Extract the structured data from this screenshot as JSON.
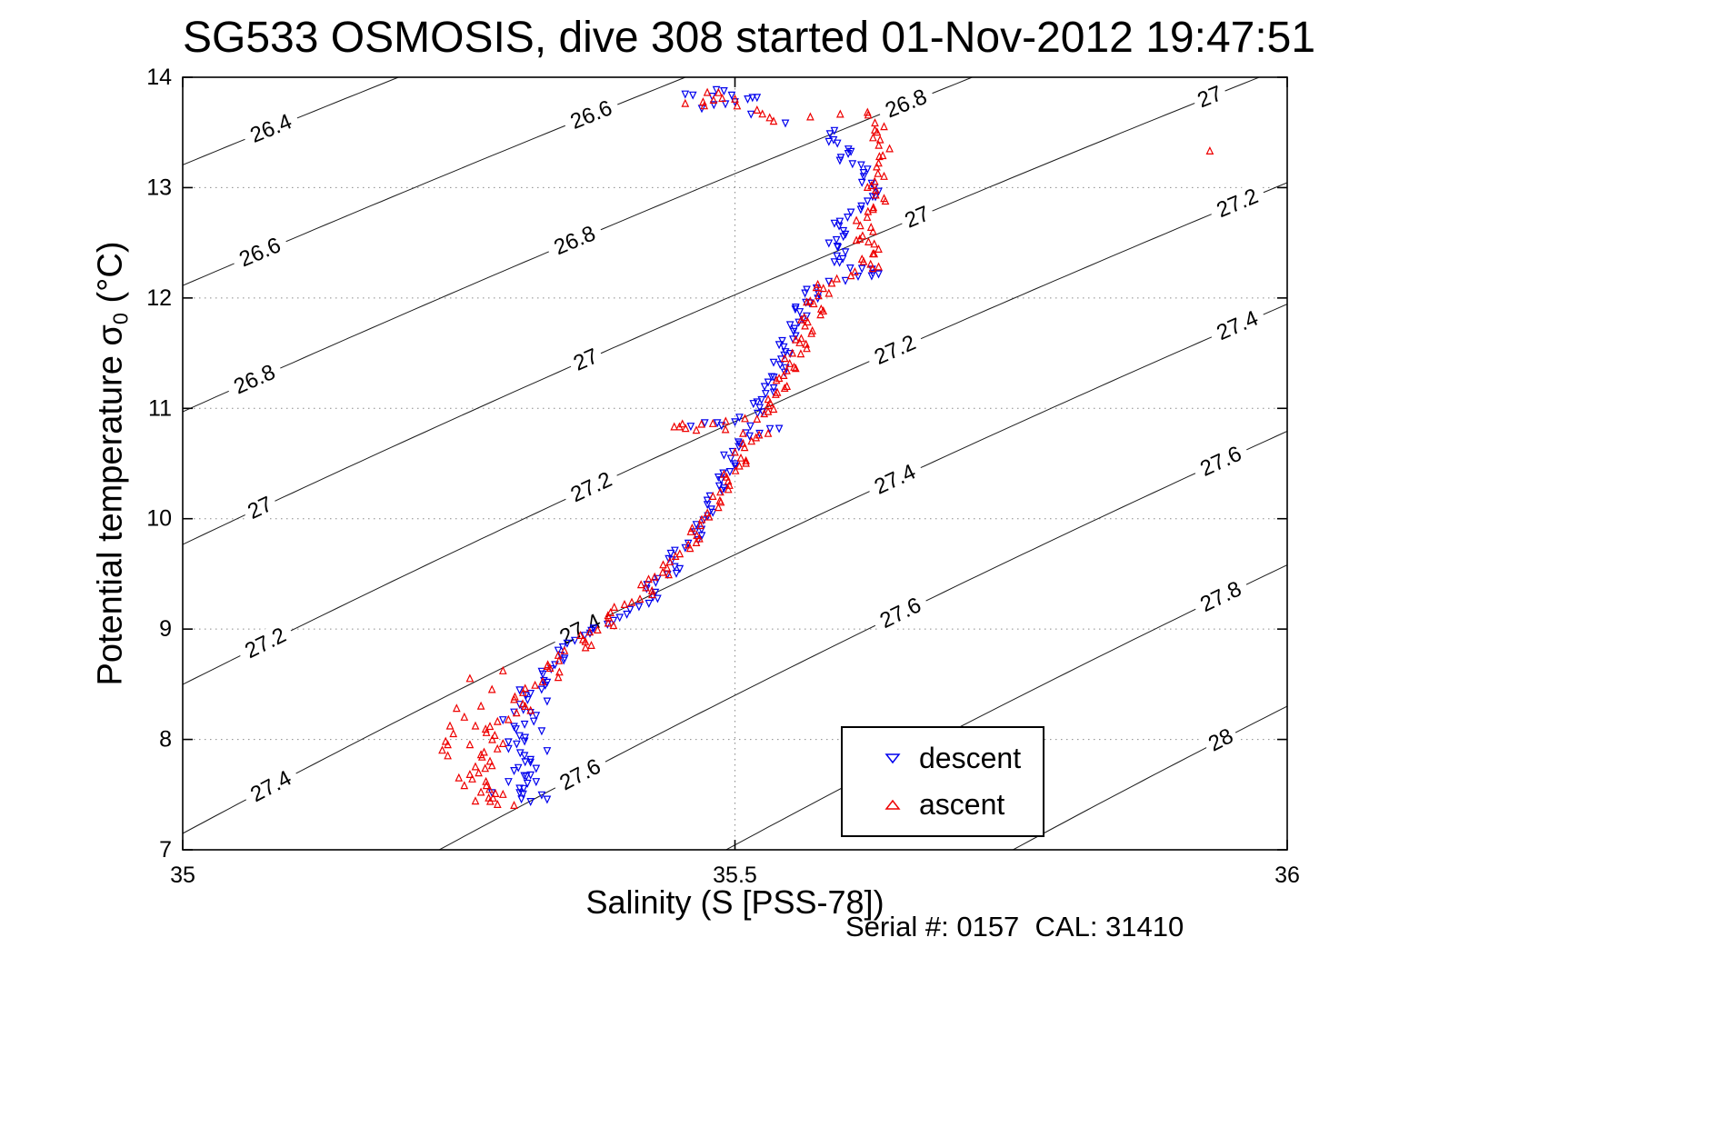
{
  "chart_data": {
    "type": "scatter",
    "title": "SG533 OSMOSIS, dive 308 started 01-Nov-2012 19:47:51",
    "xlabel": "Salinity (S [PSS-78])",
    "ylabel": "Potential temperature σ_0 (°C)",
    "ylabel_parts": {
      "pre": "Potential temperature σ",
      "sub": "0",
      "post": " (°C)"
    },
    "footnote": "Serial #: 0157  CAL: 31410",
    "xlim": [
      35,
      36
    ],
    "ylim": [
      7,
      14
    ],
    "xticks": {
      "values": [
        35,
        35.5,
        36
      ],
      "labels": [
        "35",
        "35.5",
        "36"
      ]
    },
    "yticks": {
      "values": [
        7,
        8,
        9,
        10,
        11,
        12,
        13,
        14
      ],
      "labels": [
        "7",
        "8",
        "9",
        "10",
        "11",
        "12",
        "13",
        "14"
      ]
    },
    "grid": true,
    "legend": {
      "position": "inside-lower-right",
      "entries": [
        {
          "label": "descent",
          "marker": "triangle-down",
          "color": "#0000ee"
        },
        {
          "label": "ascent",
          "marker": "triangle-up",
          "color": "#ee0000"
        }
      ]
    },
    "isopycnals": {
      "description": "potential density sigma-0 contour lines (kg/m^3)",
      "levels": [
        26.4,
        26.6,
        26.8,
        27,
        27.2,
        27.4,
        27.6,
        27.8,
        28
      ],
      "eos": {
        "sigma0": 28.242,
        "dS": 0.77,
        "a1": 0.0922,
        "a2": 0.00358
      },
      "labels": [
        {
          "level": 26.4,
          "text": "26.4",
          "s": [
            35.08
          ]
        },
        {
          "level": 26.6,
          "text": "26.6",
          "s": [
            35.07,
            35.37
          ]
        },
        {
          "level": 26.8,
          "text": "26.8",
          "s": [
            35.065,
            35.355,
            35.655
          ]
        },
        {
          "level": 27,
          "text": "27",
          "s": [
            35.07,
            35.365,
            35.665,
            35.93
          ]
        },
        {
          "level": 27.2,
          "text": "27.2",
          "s": [
            35.075,
            35.37,
            35.645,
            35.955
          ]
        },
        {
          "level": 27.4,
          "text": "27.4",
          "s": [
            35.08,
            35.36,
            35.645,
            35.955
          ]
        },
        {
          "level": 27.6,
          "text": "27.6",
          "s": [
            35.36,
            35.65,
            35.94
          ]
        },
        {
          "level": 27.8,
          "text": "27.8",
          "s": [
            35.94
          ]
        },
        {
          "level": 28,
          "text": "28",
          "s": [
            35.94
          ]
        }
      ]
    },
    "series": [
      {
        "name": "descent",
        "marker": "triangle-down",
        "color": "#0000ee",
        "points": [
          [
            35.49,
            13.88
          ],
          [
            35.455,
            13.85
          ],
          [
            35.52,
            13.82
          ],
          [
            35.5,
            13.78
          ],
          [
            35.47,
            13.72
          ],
          [
            35.59,
            13.52
          ],
          [
            35.585,
            13.42
          ],
          [
            35.605,
            13.33
          ],
          [
            35.595,
            13.25
          ],
          [
            35.62,
            13.17
          ],
          [
            35.615,
            13.05
          ],
          [
            35.63,
            12.97
          ],
          [
            35.62,
            12.88
          ],
          [
            35.605,
            12.78
          ],
          [
            35.59,
            12.68
          ],
          [
            35.6,
            12.58
          ],
          [
            35.585,
            12.5
          ],
          [
            35.6,
            12.42
          ],
          [
            35.59,
            12.33
          ],
          [
            35.615,
            12.27
          ],
          [
            35.63,
            12.22
          ],
          [
            35.6,
            12.16
          ],
          [
            35.565,
            12.08
          ],
          [
            35.575,
            12.0
          ],
          [
            35.555,
            11.92
          ],
          [
            35.565,
            11.84
          ],
          [
            35.55,
            11.76
          ],
          [
            35.555,
            11.66
          ],
          [
            35.54,
            11.58
          ],
          [
            35.55,
            11.5
          ],
          [
            35.535,
            11.42
          ],
          [
            35.545,
            11.33
          ],
          [
            35.53,
            11.24
          ],
          [
            35.535,
            11.15
          ],
          [
            35.52,
            11.06
          ],
          [
            35.525,
            10.97
          ],
          [
            35.5,
            10.88
          ],
          [
            35.46,
            10.84
          ],
          [
            35.54,
            10.82
          ],
          [
            35.51,
            10.78
          ],
          [
            35.505,
            10.68
          ],
          [
            35.49,
            10.58
          ],
          [
            35.5,
            10.48
          ],
          [
            35.485,
            10.38
          ],
          [
            35.49,
            10.28
          ],
          [
            35.475,
            10.17
          ],
          [
            35.48,
            10.06
          ],
          [
            35.465,
            9.95
          ],
          [
            35.47,
            9.85
          ],
          [
            35.455,
            9.74
          ],
          [
            35.44,
            9.64
          ],
          [
            35.45,
            9.55
          ],
          [
            35.43,
            9.46
          ],
          [
            35.42,
            9.37
          ],
          [
            35.43,
            9.28
          ],
          [
            35.405,
            9.18
          ],
          [
            35.39,
            9.08
          ],
          [
            35.37,
            8.99
          ],
          [
            35.355,
            8.9
          ],
          [
            35.34,
            8.81
          ],
          [
            35.345,
            8.72
          ],
          [
            35.325,
            8.62
          ],
          [
            35.33,
            8.52
          ],
          [
            35.315,
            8.42
          ],
          [
            35.305,
            8.32
          ],
          [
            35.32,
            8.22
          ],
          [
            35.3,
            8.12
          ],
          [
            35.31,
            8.02
          ],
          [
            35.295,
            7.92
          ],
          [
            35.315,
            7.82
          ],
          [
            35.3,
            7.72
          ],
          [
            35.32,
            7.62
          ],
          [
            35.305,
            7.52
          ],
          [
            35.315,
            7.44
          ]
        ],
        "extra_points": [
          [
            35.305,
            8.45
          ],
          [
            35.33,
            8.35
          ],
          [
            35.3,
            8.25
          ],
          [
            35.325,
            8.08
          ],
          [
            35.295,
            7.98
          ],
          [
            35.33,
            7.9
          ],
          [
            35.31,
            7.8
          ],
          [
            35.295,
            7.62
          ],
          [
            35.325,
            7.5
          ],
          [
            35.305,
            7.56
          ],
          [
            35.33,
            7.46
          ],
          [
            35.28,
            7.52
          ],
          [
            35.315,
            7.68
          ],
          [
            35.29,
            8.18
          ],
          [
            35.32,
            7.74
          ]
        ]
      },
      {
        "name": "ascent",
        "marker": "triangle-up",
        "color": "#ee0000",
        "points": [
          [
            35.475,
            13.86
          ],
          [
            35.5,
            13.8
          ],
          [
            35.455,
            13.76
          ],
          [
            35.52,
            13.7
          ],
          [
            35.535,
            13.6
          ],
          [
            35.62,
            13.68
          ],
          [
            35.635,
            13.55
          ],
          [
            35.625,
            13.45
          ],
          [
            35.64,
            13.35
          ],
          [
            35.63,
            13.22
          ],
          [
            35.635,
            13.1
          ],
          [
            35.62,
            13.0
          ],
          [
            35.635,
            12.9
          ],
          [
            35.625,
            12.8
          ],
          [
            35.61,
            12.7
          ],
          [
            35.625,
            12.6
          ],
          [
            35.61,
            12.52
          ],
          [
            35.63,
            12.44
          ],
          [
            35.615,
            12.35
          ],
          [
            35.63,
            12.28
          ],
          [
            35.605,
            12.2
          ],
          [
            35.575,
            12.12
          ],
          [
            35.585,
            12.04
          ],
          [
            35.565,
            11.96
          ],
          [
            35.58,
            11.88
          ],
          [
            35.56,
            11.8
          ],
          [
            35.57,
            11.7
          ],
          [
            35.555,
            11.62
          ],
          [
            35.565,
            11.54
          ],
          [
            35.545,
            11.45
          ],
          [
            35.555,
            11.36
          ],
          [
            35.54,
            11.27
          ],
          [
            35.545,
            11.18
          ],
          [
            35.53,
            11.08
          ],
          [
            35.535,
            10.99
          ],
          [
            35.52,
            10.9
          ],
          [
            35.48,
            10.86
          ],
          [
            35.445,
            10.83
          ],
          [
            35.465,
            10.8
          ],
          [
            35.53,
            10.77
          ],
          [
            35.515,
            10.7
          ],
          [
            35.5,
            10.6
          ],
          [
            35.51,
            10.5
          ],
          [
            35.49,
            10.4
          ],
          [
            35.495,
            10.3
          ],
          [
            35.48,
            10.2
          ],
          [
            35.485,
            10.1
          ],
          [
            35.47,
            9.99
          ],
          [
            35.46,
            9.88
          ],
          [
            35.465,
            9.78
          ],
          [
            35.45,
            9.68
          ],
          [
            35.435,
            9.58
          ],
          [
            35.44,
            9.49
          ],
          [
            35.415,
            9.4
          ],
          [
            35.425,
            9.31
          ],
          [
            35.4,
            9.22
          ],
          [
            35.385,
            9.12
          ],
          [
            35.39,
            9.03
          ],
          [
            35.36,
            8.94
          ],
          [
            35.37,
            8.85
          ],
          [
            35.34,
            8.76
          ],
          [
            35.33,
            8.66
          ],
          [
            35.34,
            8.56
          ],
          [
            35.31,
            8.46
          ],
          [
            35.3,
            8.36
          ],
          [
            35.315,
            8.26
          ],
          [
            35.285,
            8.16
          ],
          [
            35.275,
            8.06
          ],
          [
            35.29,
            7.96
          ],
          [
            35.27,
            7.86
          ],
          [
            35.28,
            7.76
          ],
          [
            35.26,
            7.68
          ],
          [
            35.275,
            7.58
          ],
          [
            35.29,
            7.5
          ],
          [
            35.265,
            7.44
          ],
          [
            35.3,
            7.4
          ]
        ],
        "extra_points": [
          [
            35.27,
            8.3
          ],
          [
            35.255,
            8.2
          ],
          [
            35.245,
            8.05
          ],
          [
            35.26,
            7.95
          ],
          [
            35.24,
            7.85
          ],
          [
            35.265,
            7.75
          ],
          [
            35.25,
            7.65
          ],
          [
            35.27,
            7.52
          ],
          [
            35.24,
            7.95
          ],
          [
            35.255,
            7.58
          ],
          [
            35.28,
            8.45
          ],
          [
            35.265,
            8.12
          ],
          [
            35.235,
            7.9
          ],
          [
            35.26,
            8.55
          ],
          [
            35.29,
            8.62
          ],
          [
            35.248,
            8.28
          ],
          [
            35.242,
            8.12
          ],
          [
            35.238,
            7.98
          ]
        ],
        "outliers": [
          [
            35.93,
            13.33
          ]
        ]
      }
    ]
  }
}
